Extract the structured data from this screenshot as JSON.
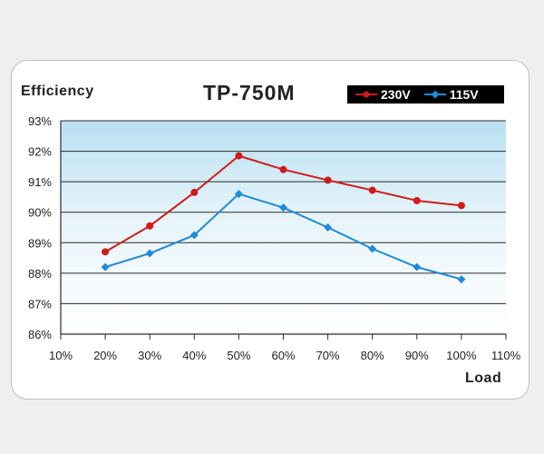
{
  "colors": {
    "red": "#d01a1a",
    "blue": "#1f8ad6",
    "frame": "#bdbdbd"
  },
  "chart_data": {
    "type": "line",
    "title": "TP-750M",
    "ylabel": "Efficiency",
    "xlabel": "Load",
    "x_ticks": [
      "10%",
      "20%",
      "30%",
      "40%",
      "50%",
      "60%",
      "70%",
      "80%",
      "90%",
      "100%",
      "110%"
    ],
    "y_ticks": [
      "86%",
      "87%",
      "88%",
      "89%",
      "90%",
      "91%",
      "92%",
      "93%"
    ],
    "xlim": [
      10,
      110
    ],
    "ylim": [
      86,
      93
    ],
    "x": [
      20,
      30,
      40,
      50,
      60,
      70,
      80,
      90,
      100
    ],
    "series": [
      {
        "name": "230V",
        "color": "#d01a1a",
        "marker": "circle",
        "values": [
          88.7,
          89.55,
          90.65,
          91.85,
          91.4,
          91.05,
          90.72,
          90.38,
          90.22
        ]
      },
      {
        "name": "115V",
        "color": "#1f8ad6",
        "marker": "diamond",
        "values": [
          88.2,
          88.65,
          89.25,
          90.6,
          90.15,
          89.5,
          88.8,
          88.2,
          87.8
        ]
      }
    ],
    "grid": "horizontal",
    "legend_position": "top-right"
  }
}
